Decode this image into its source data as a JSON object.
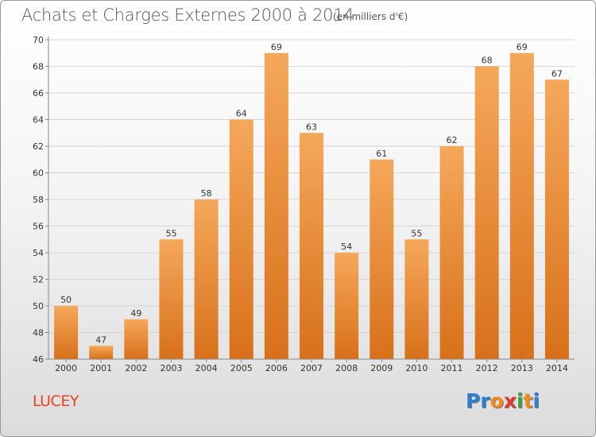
{
  "header": {
    "title": "Achats et Charges Externes 2000 à 2014",
    "unit": "(en milliers d'€)"
  },
  "footer": {
    "commune": "LUCEY",
    "logo_letters": [
      "P",
      "r",
      "o",
      "x",
      "i",
      "t",
      "i"
    ]
  },
  "colors": {
    "bar_top": "#f5a85a",
    "bar_bottom": "#d8701a",
    "title": "#555555",
    "commune": "#e8421f",
    "logo": [
      "#2b7fd4",
      "#2b7fd4",
      "#f28c1a",
      "#e03a2c",
      "#3aa33a",
      "#f28c1a",
      "#2b7fd4"
    ]
  },
  "chart_data": {
    "type": "bar",
    "title": "Achats et Charges Externes 2000 à 2014",
    "xlabel": "",
    "ylabel": "",
    "categories": [
      "2000",
      "2001",
      "2002",
      "2003",
      "2004",
      "2005",
      "2006",
      "2007",
      "2008",
      "2009",
      "2010",
      "2011",
      "2012",
      "2013",
      "2014"
    ],
    "values": [
      50,
      47,
      49,
      55,
      58,
      64,
      69,
      63,
      54,
      61,
      55,
      62,
      68,
      69,
      67
    ],
    "ylim": [
      46,
      70
    ],
    "yticks": [
      46,
      48,
      50,
      52,
      54,
      56,
      58,
      60,
      62,
      64,
      66,
      68,
      70
    ],
    "grid": true,
    "data_labels": true
  }
}
